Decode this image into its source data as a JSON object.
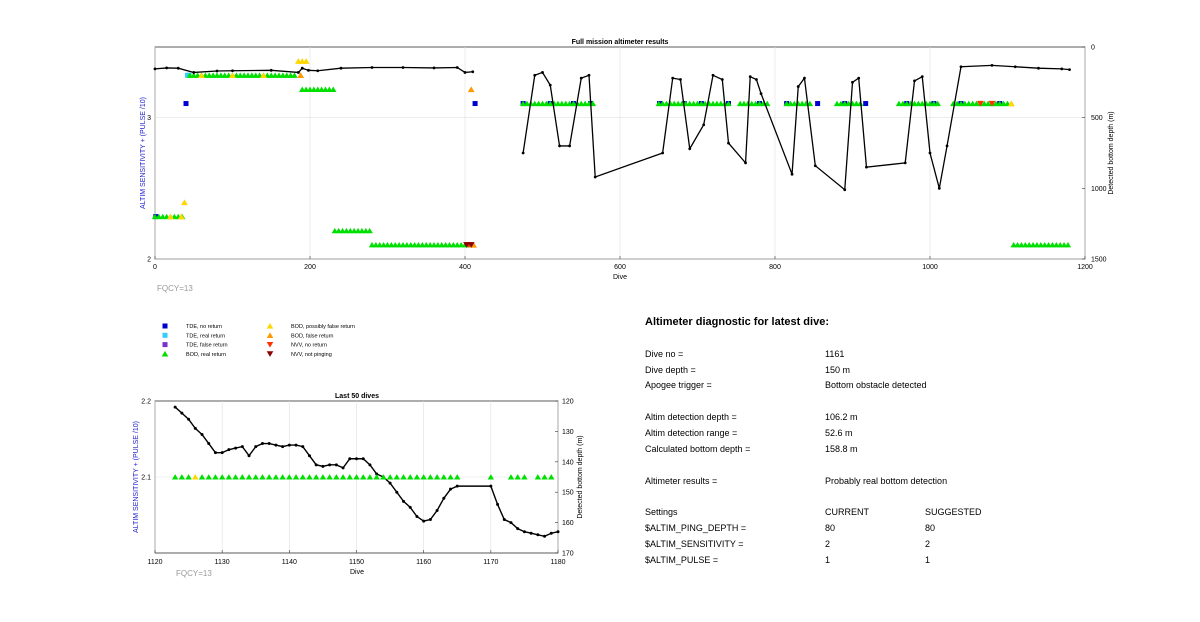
{
  "colors": {
    "tde_no_return": "#0000cc",
    "tde_real_return": "#33ccff",
    "tde_false_return": "#7733cc",
    "bod_real_return": "#00e000",
    "bod_possibly_false_return": "#ffd700",
    "bod_false_return": "#ff9900",
    "nvv_no_return": "#ff3300",
    "nvv_not_pinging": "#8b0000",
    "left_axis_label": "#2222cc",
    "fqcy": "#999999",
    "depth_line": "#000000"
  },
  "main_chart": {
    "title": "Full mission altimeter results",
    "xlabel": "Dive",
    "ylabel_left": "ALTIM SENSITIVITY + (PULSE /10)",
    "ylabel_right": "Detected bottom depth (m)",
    "xlim": [
      0,
      1200
    ],
    "xticks": [
      "0",
      "200",
      "400",
      "600",
      "800",
      "1000",
      "1200"
    ],
    "ylim_left": [
      2,
      3.5
    ],
    "yticks_left": [
      "2",
      "3"
    ],
    "ylim_right_reversed": [
      0,
      1500
    ],
    "yticks_right": [
      "0",
      "500",
      "1000",
      "1500"
    ],
    "footer": "FQCY=13"
  },
  "legend": {
    "items": [
      {
        "label": "TDE, no return",
        "symbol": "square",
        "color_key": "tde_no_return"
      },
      {
        "label": "TDE, real return",
        "symbol": "square",
        "color_key": "tde_real_return"
      },
      {
        "label": "TDE, false return",
        "symbol": "square",
        "color_key": "tde_false_return"
      },
      {
        "label": "BOD, real return",
        "symbol": "triangle-up",
        "color_key": "bod_real_return"
      },
      {
        "label": "BOD, possibly false return",
        "symbol": "triangle-up",
        "color_key": "bod_possibly_false_return"
      },
      {
        "label": "BOD, false return",
        "symbol": "triangle-up",
        "color_key": "bod_false_return"
      },
      {
        "label": "NVV, no return",
        "symbol": "triangle-down",
        "color_key": "nvv_no_return"
      },
      {
        "label": "NVV, not pinging",
        "symbol": "triangle-down",
        "color_key": "nvv_not_pinging"
      }
    ]
  },
  "small_chart": {
    "title": "Last 50 dives",
    "xlabel": "Dive",
    "ylabel_left": "ALTIM SENSITIVITY + (PULSE /10)",
    "ylabel_right": "Detected bottom depth (m)",
    "xlim": [
      1120,
      1180
    ],
    "xticks": [
      "1120",
      "1130",
      "1140",
      "1150",
      "1160",
      "1170",
      "1180"
    ],
    "ylim_left": [
      2.0,
      2.2
    ],
    "yticks_left": [
      "2.2",
      "2.1"
    ],
    "ylim_right_reversed": [
      120,
      170
    ],
    "yticks_right": [
      "120",
      "130",
      "140",
      "150",
      "160",
      "170"
    ],
    "footer": "FQCY=13"
  },
  "diagnostic": {
    "title": "Altimeter diagnostic for latest dive:",
    "rows": [
      {
        "label": "Dive no =",
        "value": "1161"
      },
      {
        "label": "Dive depth =",
        "value": "150 m"
      },
      {
        "label": "Apogee trigger =",
        "value": "Bottom obstacle detected"
      },
      {
        "label": "Altim detection depth =",
        "value": "106.2 m"
      },
      {
        "label": "Altim detection range =",
        "value": "52.6 m"
      },
      {
        "label": "Calculated bottom depth =",
        "value": "158.8 m"
      },
      {
        "label": "Altimeter results =",
        "value": "Probably real bottom detection"
      }
    ],
    "settings_header": {
      "label": "Settings",
      "current": "CURRENT",
      "suggested": "SUGGESTED"
    },
    "settings": [
      {
        "label": "$ALTIM_PING_DEPTH =",
        "current": "80",
        "suggested": "80"
      },
      {
        "label": "$ALTIM_SENSITIVITY =",
        "current": "2",
        "suggested": "2"
      },
      {
        "label": "$ALTIM_PULSE =",
        "current": "1",
        "suggested": "1"
      }
    ]
  },
  "chart_data": [
    {
      "type": "scatter",
      "title": "Full mission altimeter results",
      "xlabel": "Dive",
      "ylabel": "ALTIM SENSITIVITY + (PULSE /10)",
      "y2label": "Detected bottom depth (m)",
      "xlim": [
        0,
        1200
      ],
      "ylim": [
        2,
        3.5
      ],
      "y2lim_reversed": [
        0,
        1500
      ],
      "grid": true,
      "series": [
        {
          "name": "TDE, no return",
          "x": [
            1,
            40,
            413,
            475,
            510,
            540,
            562,
            651,
            683,
            705,
            740,
            780,
            815,
            855,
            890,
            917,
            970,
            1005,
            1040,
            1090
          ],
          "y": [
            2.3,
            3.1,
            3.1,
            3.1,
            3.1,
            3.1,
            3.1,
            3.1,
            3.1,
            3.1,
            3.1,
            3.1,
            3.1,
            3.1,
            3.1,
            3.1,
            3.1,
            3.1,
            3.1,
            3.1
          ]
        },
        {
          "name": "TDE, real return",
          "x": [
            42,
            44
          ],
          "y": [
            3.3,
            3.3
          ]
        },
        {
          "name": "BOD, real return",
          "segments": [
            [
              0,
              35,
              2.3
            ],
            [
              45,
              180,
              3.3
            ],
            [
              190,
              230,
              3.2
            ],
            [
              232,
              280,
              2.2
            ],
            [
              280,
              410,
              2.1
            ],
            [
              475,
              565,
              3.1
            ],
            [
              650,
              740,
              3.1
            ],
            [
              755,
              790,
              3.1
            ],
            [
              815,
              845,
              3.1
            ],
            [
              880,
              910,
              3.1
            ],
            [
              960,
              1010,
              3.1
            ],
            [
              1030,
              1105,
              3.1
            ],
            [
              1108,
              1180,
              2.1
            ]
          ]
        },
        {
          "name": "BOD, possibly false return",
          "x": [
            20,
            34,
            38,
            60,
            100,
            140,
            185,
            190,
            195,
            410,
            1105
          ],
          "y": [
            2.3,
            2.3,
            2.4,
            3.3,
            3.3,
            3.3,
            3.4,
            3.4,
            3.4,
            2.1,
            3.1
          ]
        },
        {
          "name": "BOD, false return",
          "x": [
            188,
            408,
            411
          ],
          "y": [
            3.3,
            3.2,
            2.1
          ]
        },
        {
          "name": "NVV, no return",
          "x": [
            405,
            1065,
            1080
          ],
          "y": [
            2.1,
            3.1,
            3.1
          ]
        },
        {
          "name": "NVV, not pinging",
          "x": [
            402,
            408
          ],
          "y": [
            2.1,
            2.1
          ]
        }
      ],
      "depth": {
        "flat": [
          [
            0,
            155
          ],
          [
            15,
            148
          ],
          [
            30,
            150
          ],
          [
            50,
            180
          ],
          [
            80,
            170
          ],
          [
            100,
            168
          ],
          [
            150,
            165
          ],
          [
            185,
            180
          ],
          [
            190,
            150
          ],
          [
            198,
            165
          ],
          [
            210,
            168
          ],
          [
            240,
            150
          ],
          [
            280,
            145
          ],
          [
            320,
            145
          ],
          [
            360,
            148
          ],
          [
            390,
            145
          ],
          [
            400,
            180
          ],
          [
            410,
            175
          ]
        ],
        "dives": [
          [
            475,
            750
          ],
          [
            490,
            200
          ],
          [
            500,
            180
          ],
          [
            510,
            270
          ],
          [
            522,
            700
          ],
          [
            535,
            700
          ],
          [
            550,
            220
          ],
          [
            560,
            200
          ],
          [
            568,
            920
          ],
          [
            655,
            750
          ],
          [
            668,
            220
          ],
          [
            678,
            230
          ],
          [
            690,
            720
          ],
          [
            708,
            550
          ],
          [
            720,
            200
          ],
          [
            732,
            230
          ],
          [
            740,
            680
          ],
          [
            762,
            820
          ],
          [
            768,
            210
          ],
          [
            776,
            230
          ],
          [
            782,
            330
          ],
          [
            822,
            900
          ],
          [
            830,
            280
          ],
          [
            838,
            220
          ],
          [
            852,
            840
          ],
          [
            890,
            1010
          ],
          [
            900,
            250
          ],
          [
            908,
            220
          ],
          [
            918,
            850
          ],
          [
            968,
            820
          ],
          [
            980,
            240
          ],
          [
            990,
            210
          ],
          [
            1000,
            750
          ],
          [
            1012,
            1000
          ],
          [
            1022,
            700
          ],
          [
            1040,
            140
          ],
          [
            1080,
            130
          ],
          [
            1110,
            140
          ],
          [
            1140,
            150
          ],
          [
            1170,
            155
          ],
          [
            1180,
            160
          ]
        ]
      }
    },
    {
      "type": "line",
      "title": "Last 50 dives",
      "xlabel": "Dive",
      "ylabel": "ALTIM SENSITIVITY + (PULSE /10)",
      "y2label": "Detected bottom depth (m)",
      "xlim": [
        1120,
        1180
      ],
      "ylim": [
        2.0,
        2.2
      ],
      "y2lim_reversed": [
        120,
        170
      ],
      "series": [
        {
          "name": "Detected bottom depth (m)",
          "x": [
            1123,
            1124,
            1125,
            1126,
            1127,
            1128,
            1129,
            1130,
            1131,
            1132,
            1133,
            1134,
            1135,
            1136,
            1137,
            1138,
            1139,
            1140,
            1141,
            1142,
            1143,
            1144,
            1145,
            1146,
            1147,
            1148,
            1149,
            1150,
            1151,
            1152,
            1153,
            1154,
            1155,
            1156,
            1157,
            1158,
            1159,
            1160,
            1161,
            1162,
            1163,
            1164,
            1165,
            1170,
            1171,
            1172,
            1173,
            1174,
            1175,
            1176,
            1177,
            1178,
            1179,
            1180
          ],
          "y": [
            122,
            124,
            126,
            129,
            131,
            134,
            137,
            137,
            136,
            135.5,
            135,
            138,
            135,
            134,
            134,
            134.5,
            135,
            134.5,
            134.5,
            135,
            138,
            141,
            141.5,
            141,
            141,
            142,
            139,
            139,
            139,
            141,
            144,
            145,
            147,
            150,
            153,
            155,
            158,
            159.5,
            159,
            156,
            152,
            149,
            148,
            148,
            154,
            159,
            160,
            162,
            163,
            163.5,
            164,
            164.5,
            163.5,
            163
          ]
        },
        {
          "name": "BOD, real return",
          "x": [
            1123,
            1124,
            1125,
            1127,
            1128,
            1129,
            1130,
            1131,
            1132,
            1133,
            1134,
            1135,
            1136,
            1137,
            1138,
            1139,
            1140,
            1141,
            1142,
            1143,
            1144,
            1145,
            1146,
            1147,
            1148,
            1149,
            1150,
            1151,
            1152,
            1153,
            1154,
            1155,
            1156,
            1157,
            1158,
            1159,
            1160,
            1161,
            1162,
            1163,
            1164,
            1165,
            1170,
            1173,
            1174,
            1175,
            1177,
            1178,
            1179
          ],
          "y": [
            2.1,
            2.1,
            2.1,
            2.1,
            2.1,
            2.1,
            2.1,
            2.1,
            2.1,
            2.1,
            2.1,
            2.1,
            2.1,
            2.1,
            2.1,
            2.1,
            2.1,
            2.1,
            2.1,
            2.1,
            2.1,
            2.1,
            2.1,
            2.1,
            2.1,
            2.1,
            2.1,
            2.1,
            2.1,
            2.1,
            2.1,
            2.1,
            2.1,
            2.1,
            2.1,
            2.1,
            2.1,
            2.1,
            2.1,
            2.1,
            2.1,
            2.1,
            2.1,
            2.1,
            2.1,
            2.1,
            2.1,
            2.1,
            2.1
          ]
        },
        {
          "name": "BOD, possibly false return",
          "x": [
            1126
          ],
          "y": [
            2.1
          ]
        }
      ]
    }
  ]
}
